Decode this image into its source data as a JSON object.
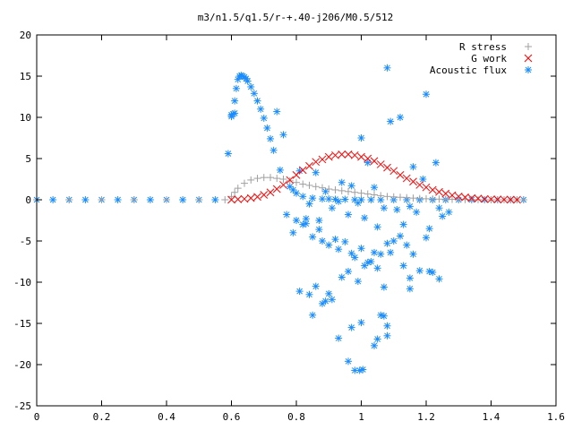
{
  "chart_data": {
    "type": "scatter",
    "title": "m3/n1.5/q1.5/r-+.40-j206/M0.5/512",
    "xlabel": "",
    "ylabel": "",
    "xlim": [
      0,
      1.6
    ],
    "ylim": [
      -25,
      20
    ],
    "x_ticks": [
      "0",
      "0.2",
      "0.4",
      "0.6",
      "0.8",
      "1",
      "1.2",
      "1.4",
      "1.6"
    ],
    "y_ticks": [
      "20",
      "15",
      "10",
      "5",
      "0",
      "-5",
      "-10",
      "-15",
      "-20",
      "-25"
    ],
    "grid": false,
    "legend": "top-right",
    "series": [
      {
        "name": "R stress",
        "marker": "plus",
        "color": "#a0a0a0",
        "x": [
          0.0,
          0.1,
          0.2,
          0.3,
          0.4,
          0.5,
          0.58,
          0.6,
          0.61,
          0.62,
          0.64,
          0.66,
          0.68,
          0.7,
          0.72,
          0.74,
          0.76,
          0.78,
          0.8,
          0.82,
          0.84,
          0.86,
          0.88,
          0.9,
          0.92,
          0.94,
          0.96,
          0.98,
          1.0,
          1.02,
          1.04,
          1.06,
          1.08,
          1.1,
          1.12,
          1.14,
          1.16,
          1.18,
          1.2,
          1.22,
          1.24,
          1.26,
          1.28,
          1.3,
          1.32,
          1.34,
          1.36,
          1.38,
          1.4,
          1.42,
          1.44,
          1.46,
          1.48,
          1.5
        ],
        "y": [
          0,
          0,
          0,
          0,
          0,
          0,
          0,
          0.4,
          0.9,
          1.4,
          2.0,
          2.4,
          2.6,
          2.7,
          2.7,
          2.6,
          2.5,
          2.3,
          2.1,
          1.9,
          1.75,
          1.6,
          1.45,
          1.3,
          1.2,
          1.1,
          1.0,
          0.9,
          0.8,
          0.7,
          0.6,
          0.5,
          0.4,
          0.35,
          0.3,
          0.25,
          0.2,
          0.15,
          0.12,
          0.1,
          0.08,
          0.06,
          0.05,
          0.04,
          0.03,
          0.02,
          0.01,
          0,
          0,
          0,
          0,
          0,
          0,
          0
        ]
      },
      {
        "name": "G work",
        "marker": "cross",
        "color": "#ff0000",
        "x": [
          0.6,
          0.62,
          0.64,
          0.66,
          0.68,
          0.7,
          0.72,
          0.74,
          0.76,
          0.78,
          0.8,
          0.82,
          0.84,
          0.86,
          0.88,
          0.9,
          0.92,
          0.94,
          0.96,
          0.98,
          1.0,
          1.02,
          1.04,
          1.06,
          1.08,
          1.1,
          1.12,
          1.14,
          1.16,
          1.18,
          1.2,
          1.22,
          1.24,
          1.26,
          1.28,
          1.3,
          1.32,
          1.34,
          1.36,
          1.38,
          1.4,
          1.42,
          1.44,
          1.46,
          1.48
        ],
        "y": [
          0,
          0.05,
          0.1,
          0.2,
          0.35,
          0.6,
          0.9,
          1.3,
          1.8,
          2.4,
          3.0,
          3.6,
          4.1,
          4.6,
          4.9,
          5.2,
          5.4,
          5.5,
          5.5,
          5.4,
          5.2,
          5.0,
          4.7,
          4.3,
          3.9,
          3.5,
          3.0,
          2.6,
          2.2,
          1.8,
          1.5,
          1.2,
          0.95,
          0.75,
          0.55,
          0.4,
          0.3,
          0.2,
          0.15,
          0.1,
          0.06,
          0.04,
          0.02,
          0.01,
          0
        ]
      },
      {
        "name": "Acoustic flux",
        "marker": "star",
        "color": "#1a8cff",
        "x": [
          0.0,
          0.05,
          0.1,
          0.15,
          0.2,
          0.25,
          0.3,
          0.35,
          0.4,
          0.45,
          0.5,
          0.55,
          0.59,
          0.6,
          0.605,
          0.61,
          0.615,
          0.62,
          0.625,
          0.63,
          0.635,
          0.64,
          0.645,
          0.65,
          0.66,
          0.67,
          0.68,
          0.69,
          0.7,
          0.71,
          0.72,
          0.73,
          0.75,
          0.78,
          0.8,
          0.82,
          0.85,
          0.88,
          0.9,
          0.92,
          0.95,
          0.98,
          1.0,
          1.03,
          1.06,
          1.1,
          1.14,
          1.18,
          1.22,
          1.26,
          1.3,
          1.34,
          1.38,
          1.42,
          1.46,
          1.5,
          0.74,
          0.76,
          0.79,
          0.81,
          0.83,
          0.84,
          0.86,
          0.87,
          0.89,
          0.91,
          0.93,
          0.94,
          0.96,
          0.97,
          0.99,
          1.0,
          1.01,
          1.02,
          1.04,
          1.05,
          1.07,
          1.08,
          1.09,
          1.11,
          1.12,
          1.13,
          1.15,
          1.16,
          1.17,
          1.19,
          1.2,
          1.21,
          1.23,
          1.24,
          1.25,
          1.27,
          0.77,
          0.79,
          0.8,
          0.82,
          0.83,
          0.85,
          0.87,
          0.88,
          0.9,
          0.92,
          0.93,
          0.95,
          0.97,
          0.98,
          1.0,
          1.01,
          1.03,
          1.04,
          1.06,
          1.08,
          1.1,
          1.12,
          1.14,
          1.16,
          1.18,
          1.2,
          1.22,
          1.24,
          0.81,
          0.84,
          0.86,
          0.89,
          0.91,
          0.94,
          0.96,
          0.99,
          1.02,
          1.05,
          1.07,
          1.09,
          1.13,
          1.15,
          0.85,
          0.88,
          0.9,
          0.93,
          0.97,
          1.0,
          1.04,
          1.06,
          1.08,
          0.96,
          0.98,
          0.995,
          1.005,
          1.07,
          1.08,
          1.21,
          1.05,
          1.15,
          0.6,
          0.61
        ],
        "y": [
          0,
          0,
          0,
          0,
          0,
          0,
          0,
          0,
          0,
          0,
          0,
          0,
          5.6,
          10.3,
          10.4,
          12.0,
          13.5,
          14.6,
          15.0,
          15.1,
          15.0,
          14.9,
          14.7,
          14.4,
          13.7,
          12.9,
          12.0,
          11.0,
          9.9,
          8.7,
          7.4,
          6.0,
          3.6,
          1.6,
          0.8,
          0.4,
          0.2,
          0.1,
          0.1,
          0.05,
          0.05,
          0,
          0,
          0,
          0,
          0,
          0,
          0,
          0,
          0,
          0,
          0,
          0,
          0,
          0,
          0,
          10.7,
          7.9,
          1.2,
          3.5,
          -2.3,
          -0.5,
          3.3,
          -2.5,
          1.0,
          -1.0,
          -0.2,
          2.1,
          -1.8,
          1.7,
          -0.4,
          7.5,
          -2.2,
          4.5,
          1.5,
          -3.3,
          -1.0,
          16.0,
          9.5,
          -1.2,
          10.0,
          -3.0,
          -0.8,
          4.0,
          -1.5,
          2.5,
          12.8,
          -3.5,
          4.5,
          -1.0,
          -2.0,
          -1.5,
          -1.8,
          -4.0,
          -2.5,
          -3.0,
          -2.9,
          -4.5,
          -3.6,
          -5.0,
          -5.5,
          -4.8,
          -6.0,
          -5.1,
          -6.5,
          -7.0,
          -5.9,
          -8.0,
          -7.5,
          -6.4,
          -6.6,
          -5.3,
          -5.0,
          -4.4,
          -5.5,
          -6.6,
          -8.6,
          -4.6,
          -8.8,
          -9.6,
          -11.1,
          -11.5,
          -10.5,
          -12.3,
          -12.1,
          -9.4,
          -8.7,
          -9.9,
          -7.6,
          -8.3,
          -10.6,
          -6.4,
          -8.0,
          -9.5,
          -14.0,
          -12.6,
          -11.4,
          -16.8,
          -15.5,
          -14.9,
          -17.7,
          -14.0,
          -16.5,
          -19.6,
          -20.7,
          -20.7,
          -20.6,
          -14.1,
          -15.3,
          -8.7,
          -16.9,
          -10.8,
          10.1,
          10.5
        ]
      }
    ]
  }
}
